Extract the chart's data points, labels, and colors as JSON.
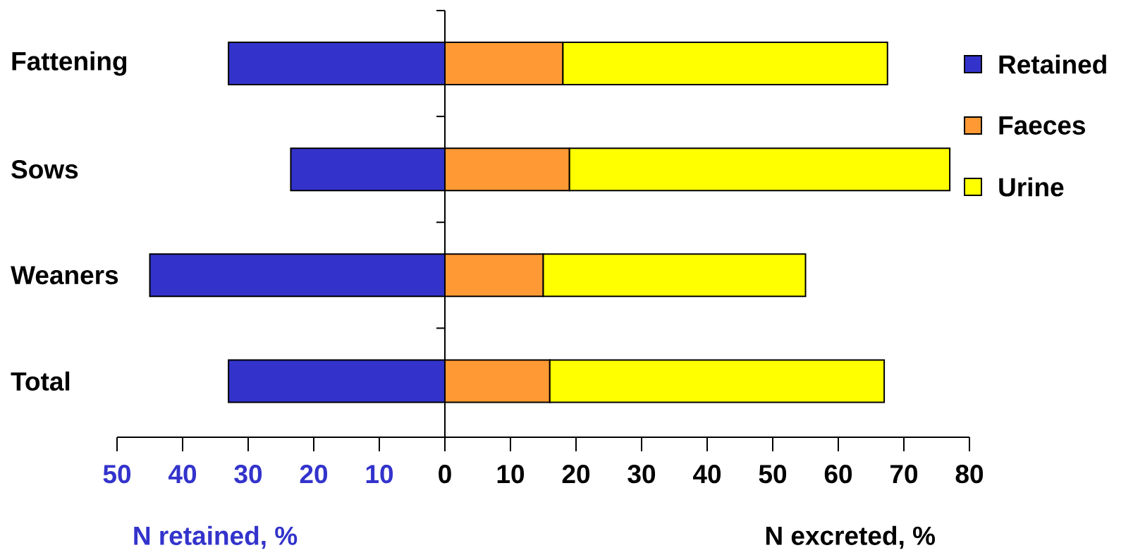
{
  "chart_data": {
    "type": "bar",
    "orientation": "horizontal",
    "stacked": true,
    "categories": [
      "Fattening",
      "Sows",
      "Weaners",
      "Total"
    ],
    "series": [
      {
        "name": "Retained",
        "color": "#3333cc",
        "values": [
          -33,
          -23.5,
          -45,
          -33
        ]
      },
      {
        "name": "Faeces",
        "color": "#ff9933",
        "values": [
          18,
          19,
          15,
          16
        ]
      },
      {
        "name": "Urine",
        "color": "#ffff00",
        "values": [
          49.5,
          58,
          40,
          51
        ]
      }
    ],
    "xlim": [
      -50,
      80
    ],
    "xticks": [
      {
        "value": -50,
        "label": "50"
      },
      {
        "value": -40,
        "label": "40"
      },
      {
        "value": -30,
        "label": "30"
      },
      {
        "value": -20,
        "label": "20"
      },
      {
        "value": -10,
        "label": "10"
      },
      0,
      10,
      20,
      30,
      40,
      50,
      60,
      70,
      80
    ],
    "xlabel": "N excreted, %",
    "annotations": [
      "N retained, %"
    ],
    "ref_lines": [
      {
        "axis": "x",
        "value": 0
      }
    ],
    "legend": "right",
    "grid": false
  }
}
